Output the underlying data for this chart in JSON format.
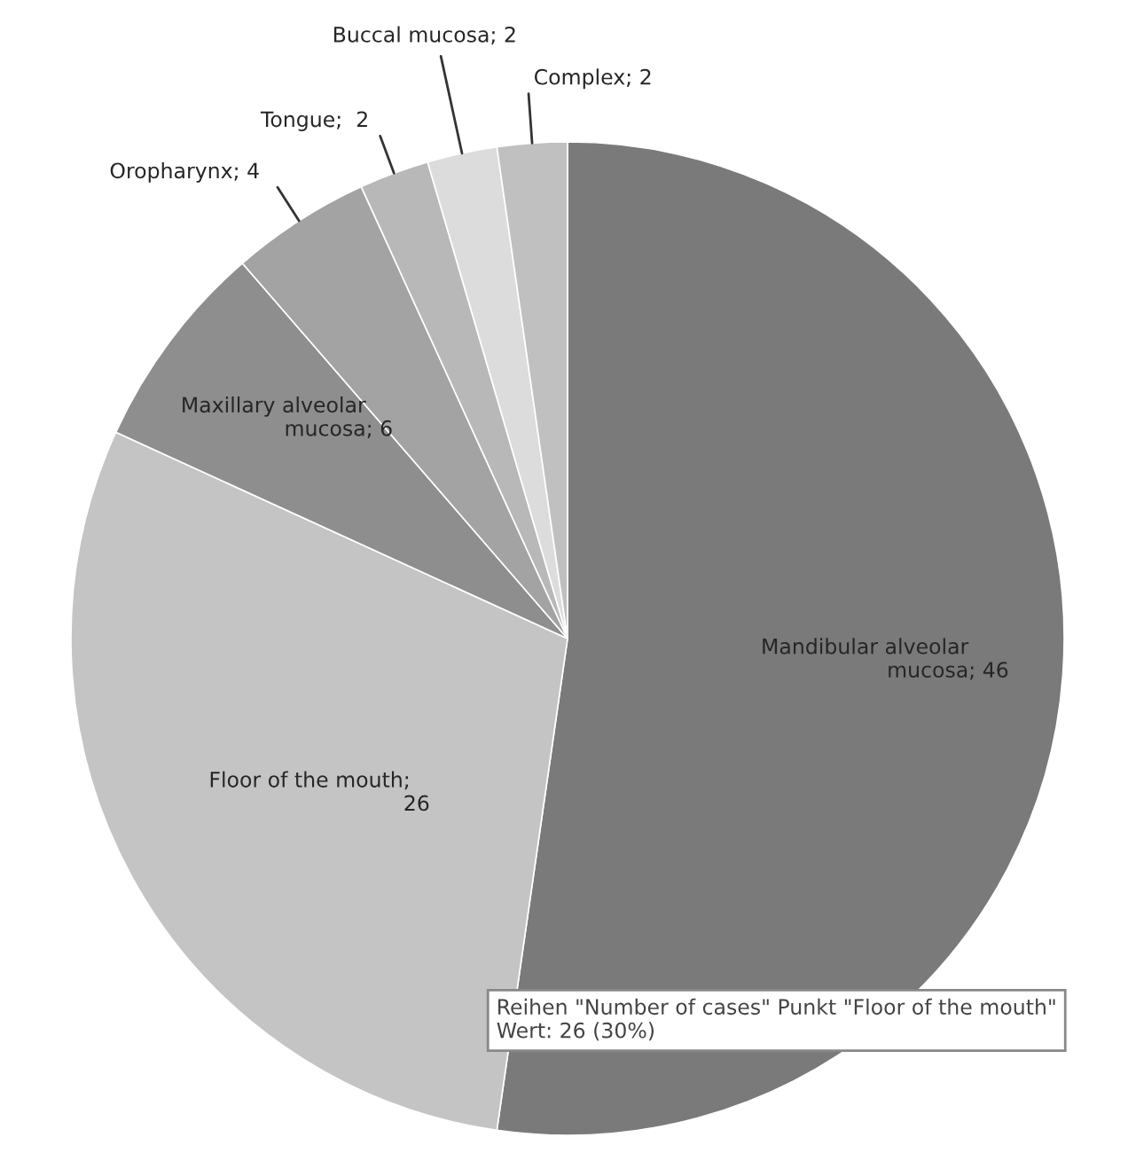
{
  "chart_data": {
    "type": "pie",
    "categories": [
      "Mandibular alveolar mucosa",
      "Floor of the mouth",
      "Maxillary alveolar mucosa",
      "Oropharynx",
      "Tongue",
      "Buccal mucosa",
      "Complex"
    ],
    "values": [
      46,
      26,
      6,
      4,
      2,
      2,
      2
    ],
    "colors": [
      "#7a7a7a",
      "#c4c4c4",
      "#8e8e8e",
      "#a3a3a3",
      "#b8b8b8",
      "#dcdcdc",
      "#c0c0c0"
    ],
    "value_labels": [
      "; 46",
      ";\n26",
      "; 6",
      "; 4",
      ";  2",
      "; 2",
      "; 2"
    ],
    "annotations": [
      "Reihen \"Number of cases\" Punkt \"Floor of the mouth\"\nWert: 26 (30%)"
    ]
  }
}
